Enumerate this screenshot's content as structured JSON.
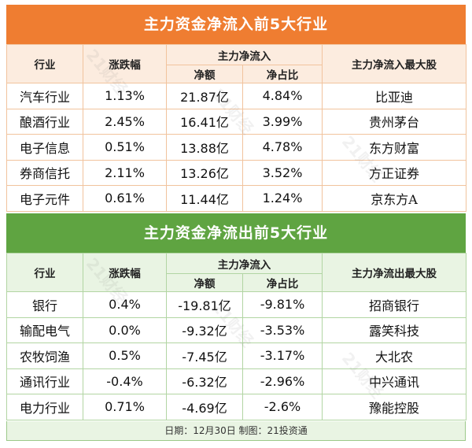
{
  "inflow": {
    "title": "主力资金净流入前5大行业",
    "headers": {
      "industry": "行业",
      "change": "涨跌幅",
      "main_flow": "主力净流入",
      "net_amount": "净额",
      "net_ratio": "净占比",
      "top_stock": "主力净流入最大股"
    },
    "rows": [
      {
        "industry": "汽车行业",
        "change": "1.13%",
        "amount": "21.87亿",
        "ratio": "4.84%",
        "stock": "比亚迪"
      },
      {
        "industry": "酿酒行业",
        "change": "2.45%",
        "amount": "16.41亿",
        "ratio": "3.99%",
        "stock": "贵州茅台"
      },
      {
        "industry": "电子信息",
        "change": "0.51%",
        "amount": "13.88亿",
        "ratio": "4.78%",
        "stock": "东方财富"
      },
      {
        "industry": "券商信托",
        "change": "2.11%",
        "amount": "13.26亿",
        "ratio": "3.52%",
        "stock": "方正证券"
      },
      {
        "industry": "电子元件",
        "change": "0.61%",
        "amount": "11.44亿",
        "ratio": "1.24%",
        "stock": "京东方A"
      }
    ]
  },
  "outflow": {
    "title": "主力资金净流出前5大行业",
    "headers": {
      "industry": "行业",
      "change": "涨跌幅",
      "main_flow": "主力净流入",
      "net_amount": "净额",
      "net_ratio": "净占比",
      "top_stock": "主力净流出最大股"
    },
    "rows": [
      {
        "industry": "银行",
        "change": "0.4%",
        "amount": "-19.81亿",
        "ratio": "-9.81%",
        "stock": "招商银行"
      },
      {
        "industry": "输配电气",
        "change": "0.0%",
        "amount": "-9.32亿",
        "ratio": "-3.53%",
        "stock": "露笑科技"
      },
      {
        "industry": "农牧饲渔",
        "change": "0.5%",
        "amount": "-7.45亿",
        "ratio": "-3.17%",
        "stock": "大北农"
      },
      {
        "industry": "通讯行业",
        "change": "-0.4%",
        "amount": "-6.32亿",
        "ratio": "-2.96%",
        "stock": "中兴通讯"
      },
      {
        "industry": "电力行业",
        "change": "0.71%",
        "amount": "-4.69亿",
        "ratio": "-2.6%",
        "stock": "豫能控股"
      }
    ]
  },
  "footer": {
    "text": "日期：12月30日 制图：21投资通"
  },
  "watermark": "21财经"
}
